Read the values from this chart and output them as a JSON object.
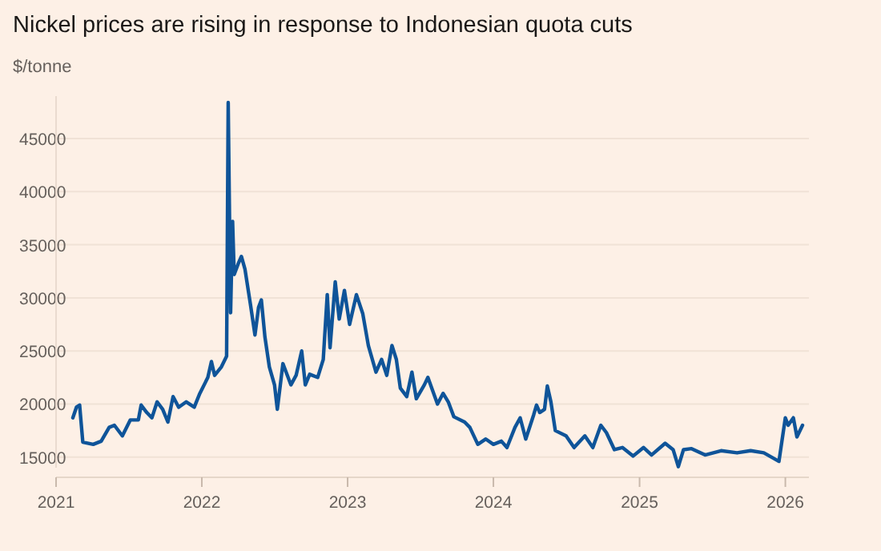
{
  "chart_data": {
    "type": "line",
    "title": "Nickel prices are rising in response to Indonesian quota cuts",
    "ylabel": "$/tonne",
    "x": [
      "2021-02-12",
      "2021-02-21",
      "2021-03-01",
      "2021-03-03",
      "2021-03-09",
      "2021-04-04",
      "2021-04-24",
      "2021-05-14",
      "2021-05-27",
      "2021-06-16",
      "2021-07-06",
      "2021-07-26",
      "2021-08-02",
      "2021-08-16",
      "2021-08-29",
      "2021-09-11",
      "2021-09-25",
      "2021-10-08",
      "2021-10-21",
      "2021-11-04",
      "2021-11-23",
      "2021-12-13",
      "2021-12-27",
      "2022-01-16",
      "2022-01-25",
      "2022-02-02",
      "2022-02-19",
      "2022-03-04",
      "2022-03-08",
      "2022-03-14",
      "2022-03-19",
      "2022-03-23",
      "2022-04-02",
      "2022-04-10",
      "2022-04-19",
      "2022-05-03",
      "2022-05-14",
      "2022-05-23",
      "2022-05-30",
      "2022-06-08",
      "2022-06-19",
      "2022-07-02",
      "2022-07-09",
      "2022-07-23",
      "2022-08-12",
      "2022-08-25",
      "2022-09-08",
      "2022-09-17",
      "2022-09-28",
      "2022-10-18",
      "2022-11-01",
      "2022-11-11",
      "2022-11-18",
      "2022-12-01",
      "2022-12-11",
      "2022-12-24",
      "2023-01-06",
      "2023-01-23",
      "2023-02-08",
      "2023-02-22",
      "2023-03-13",
      "2023-03-27",
      "2023-04-09",
      "2023-04-22",
      "2023-05-03",
      "2023-05-13",
      "2023-05-29",
      "2023-06-11",
      "2023-06-22",
      "2023-07-12",
      "2023-07-21",
      "2023-08-14",
      "2023-08-28",
      "2023-09-10",
      "2023-09-24",
      "2023-10-21",
      "2023-11-03",
      "2023-11-23",
      "2023-12-13",
      "2024-01-01",
      "2024-01-21",
      "2024-02-04",
      "2024-02-24",
      "2024-03-08",
      "2024-03-22",
      "2024-04-11",
      "2024-04-18",
      "2024-04-26",
      "2024-05-08",
      "2024-05-15",
      "2024-05-24",
      "2024-06-04",
      "2024-07-01",
      "2024-07-21",
      "2024-08-17",
      "2024-09-06",
      "2024-09-26",
      "2024-10-10",
      "2024-10-30",
      "2024-11-19",
      "2024-12-16",
      "2025-01-11",
      "2025-01-31",
      "2025-03-06",
      "2025-03-26",
      "2025-04-08",
      "2025-04-21",
      "2025-05-11",
      "2025-06-14",
      "2025-07-24",
      "2025-09-02",
      "2025-10-06",
      "2025-11-08",
      "2025-12-02",
      "2025-12-16",
      "2026-01-01",
      "2026-01-08",
      "2026-01-21",
      "2026-01-30",
      "2026-02-13"
    ],
    "series": [
      {
        "color": "#0f5499",
        "values": [
          18700,
          19700,
          19900,
          19000,
          16400,
          16200,
          16500,
          17800,
          18000,
          17000,
          18500,
          18500,
          19900,
          19200,
          18700,
          20200,
          19500,
          18300,
          20700,
          19700,
          20200,
          19700,
          21000,
          22500,
          24000,
          22700,
          23500,
          24500,
          48400,
          28600,
          37200,
          32200,
          33200,
          33900,
          32700,
          29300,
          26500,
          29100,
          29800,
          26300,
          23500,
          21800,
          19500,
          23800,
          21800,
          22700,
          25000,
          21800,
          22800,
          22500,
          24200,
          30300,
          25300,
          31500,
          28000,
          30700,
          27500,
          30300,
          28500,
          25500,
          23000,
          24200,
          22700,
          25500,
          24200,
          21500,
          20700,
          23000,
          20500,
          21800,
          22500,
          20000,
          21000,
          20200,
          18800,
          18300,
          17800,
          16200,
          16700,
          16200,
          16500,
          15900,
          17800,
          18700,
          16700,
          19000,
          19900,
          19200,
          19500,
          21700,
          20200,
          17500,
          17000,
          15900,
          17000,
          15900,
          18000,
          17300,
          15700,
          15900,
          15100,
          15900,
          15200,
          16300,
          15700,
          14100,
          15700,
          15800,
          15200,
          15600,
          15400,
          15600,
          15400,
          14900,
          14600,
          18700,
          18000,
          18700,
          16900,
          18000
        ]
      }
    ],
    "xlim": [
      "2021-01-01",
      "2026-03-01"
    ],
    "xticks": [
      {
        "value": "2021-01-01",
        "label": "2021"
      },
      {
        "value": "2022-01-01",
        "label": "2022"
      },
      {
        "value": "2023-01-01",
        "label": "2023"
      },
      {
        "value": "2024-01-01",
        "label": "2024"
      },
      {
        "value": "2025-01-01",
        "label": "2025"
      },
      {
        "value": "2026-01-01",
        "label": "2026"
      }
    ],
    "ylim": [
      14000,
      49000
    ],
    "yticks": [
      15000,
      20000,
      25000,
      30000,
      35000,
      40000,
      45000
    ],
    "grid": "y",
    "line_style": "solid",
    "marker": "none"
  }
}
